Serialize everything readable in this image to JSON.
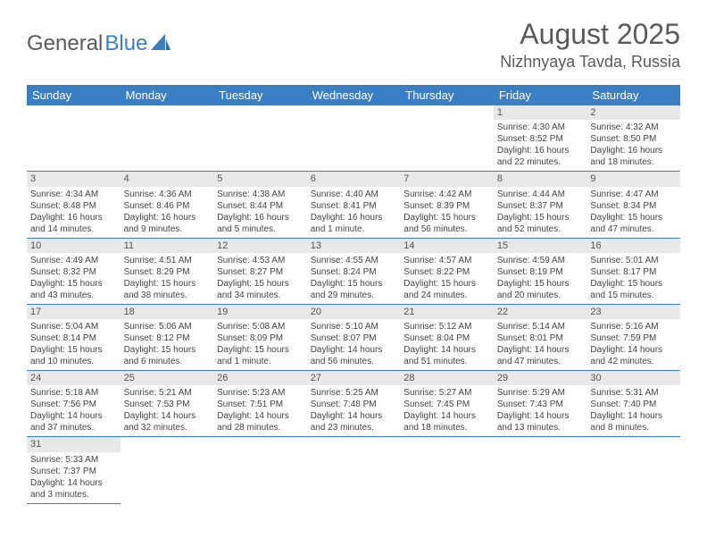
{
  "logo": {
    "text1": "General",
    "text2": "Blue"
  },
  "title": "August 2025",
  "location": "Nizhnyaya Tavda, Russia",
  "colors": {
    "header_bg": "#3a7fc4",
    "header_text": "#ffffff",
    "daynum_bg": "#e8e8e8",
    "cell_border": "#3a7fc4",
    "body_text": "#444444",
    "title_text": "#5a5a5a"
  },
  "weekdays": [
    "Sunday",
    "Monday",
    "Tuesday",
    "Wednesday",
    "Thursday",
    "Friday",
    "Saturday"
  ],
  "first_weekday_index": 5,
  "days": [
    {
      "n": 1,
      "sunrise": "4:30 AM",
      "sunset": "8:52 PM",
      "dl_h": 16,
      "dl_m": 22
    },
    {
      "n": 2,
      "sunrise": "4:32 AM",
      "sunset": "8:50 PM",
      "dl_h": 16,
      "dl_m": 18
    },
    {
      "n": 3,
      "sunrise": "4:34 AM",
      "sunset": "8:48 PM",
      "dl_h": 16,
      "dl_m": 14
    },
    {
      "n": 4,
      "sunrise": "4:36 AM",
      "sunset": "8:46 PM",
      "dl_h": 16,
      "dl_m": 9
    },
    {
      "n": 5,
      "sunrise": "4:38 AM",
      "sunset": "8:44 PM",
      "dl_h": 16,
      "dl_m": 5
    },
    {
      "n": 6,
      "sunrise": "4:40 AM",
      "sunset": "8:41 PM",
      "dl_h": 16,
      "dl_m": 1
    },
    {
      "n": 7,
      "sunrise": "4:42 AM",
      "sunset": "8:39 PM",
      "dl_h": 15,
      "dl_m": 56
    },
    {
      "n": 8,
      "sunrise": "4:44 AM",
      "sunset": "8:37 PM",
      "dl_h": 15,
      "dl_m": 52
    },
    {
      "n": 9,
      "sunrise": "4:47 AM",
      "sunset": "8:34 PM",
      "dl_h": 15,
      "dl_m": 47
    },
    {
      "n": 10,
      "sunrise": "4:49 AM",
      "sunset": "8:32 PM",
      "dl_h": 15,
      "dl_m": 43
    },
    {
      "n": 11,
      "sunrise": "4:51 AM",
      "sunset": "8:29 PM",
      "dl_h": 15,
      "dl_m": 38
    },
    {
      "n": 12,
      "sunrise": "4:53 AM",
      "sunset": "8:27 PM",
      "dl_h": 15,
      "dl_m": 34
    },
    {
      "n": 13,
      "sunrise": "4:55 AM",
      "sunset": "8:24 PM",
      "dl_h": 15,
      "dl_m": 29
    },
    {
      "n": 14,
      "sunrise": "4:57 AM",
      "sunset": "8:22 PM",
      "dl_h": 15,
      "dl_m": 24
    },
    {
      "n": 15,
      "sunrise": "4:59 AM",
      "sunset": "8:19 PM",
      "dl_h": 15,
      "dl_m": 20
    },
    {
      "n": 16,
      "sunrise": "5:01 AM",
      "sunset": "8:17 PM",
      "dl_h": 15,
      "dl_m": 15
    },
    {
      "n": 17,
      "sunrise": "5:04 AM",
      "sunset": "8:14 PM",
      "dl_h": 15,
      "dl_m": 10
    },
    {
      "n": 18,
      "sunrise": "5:06 AM",
      "sunset": "8:12 PM",
      "dl_h": 15,
      "dl_m": 6
    },
    {
      "n": 19,
      "sunrise": "5:08 AM",
      "sunset": "8:09 PM",
      "dl_h": 15,
      "dl_m": 1
    },
    {
      "n": 20,
      "sunrise": "5:10 AM",
      "sunset": "8:07 PM",
      "dl_h": 14,
      "dl_m": 56
    },
    {
      "n": 21,
      "sunrise": "5:12 AM",
      "sunset": "8:04 PM",
      "dl_h": 14,
      "dl_m": 51
    },
    {
      "n": 22,
      "sunrise": "5:14 AM",
      "sunset": "8:01 PM",
      "dl_h": 14,
      "dl_m": 47
    },
    {
      "n": 23,
      "sunrise": "5:16 AM",
      "sunset": "7:59 PM",
      "dl_h": 14,
      "dl_m": 42
    },
    {
      "n": 24,
      "sunrise": "5:18 AM",
      "sunset": "7:56 PM",
      "dl_h": 14,
      "dl_m": 37
    },
    {
      "n": 25,
      "sunrise": "5:21 AM",
      "sunset": "7:53 PM",
      "dl_h": 14,
      "dl_m": 32
    },
    {
      "n": 26,
      "sunrise": "5:23 AM",
      "sunset": "7:51 PM",
      "dl_h": 14,
      "dl_m": 28
    },
    {
      "n": 27,
      "sunrise": "5:25 AM",
      "sunset": "7:48 PM",
      "dl_h": 14,
      "dl_m": 23
    },
    {
      "n": 28,
      "sunrise": "5:27 AM",
      "sunset": "7:45 PM",
      "dl_h": 14,
      "dl_m": 18
    },
    {
      "n": 29,
      "sunrise": "5:29 AM",
      "sunset": "7:43 PM",
      "dl_h": 14,
      "dl_m": 13
    },
    {
      "n": 30,
      "sunrise": "5:31 AM",
      "sunset": "7:40 PM",
      "dl_h": 14,
      "dl_m": 8
    },
    {
      "n": 31,
      "sunrise": "5:33 AM",
      "sunset": "7:37 PM",
      "dl_h": 14,
      "dl_m": 3
    }
  ],
  "labels": {
    "sunrise": "Sunrise:",
    "sunset": "Sunset:",
    "daylight": "Daylight:",
    "hours": "hours",
    "and": "and",
    "minutes": "minutes.",
    "minute": "minute."
  }
}
